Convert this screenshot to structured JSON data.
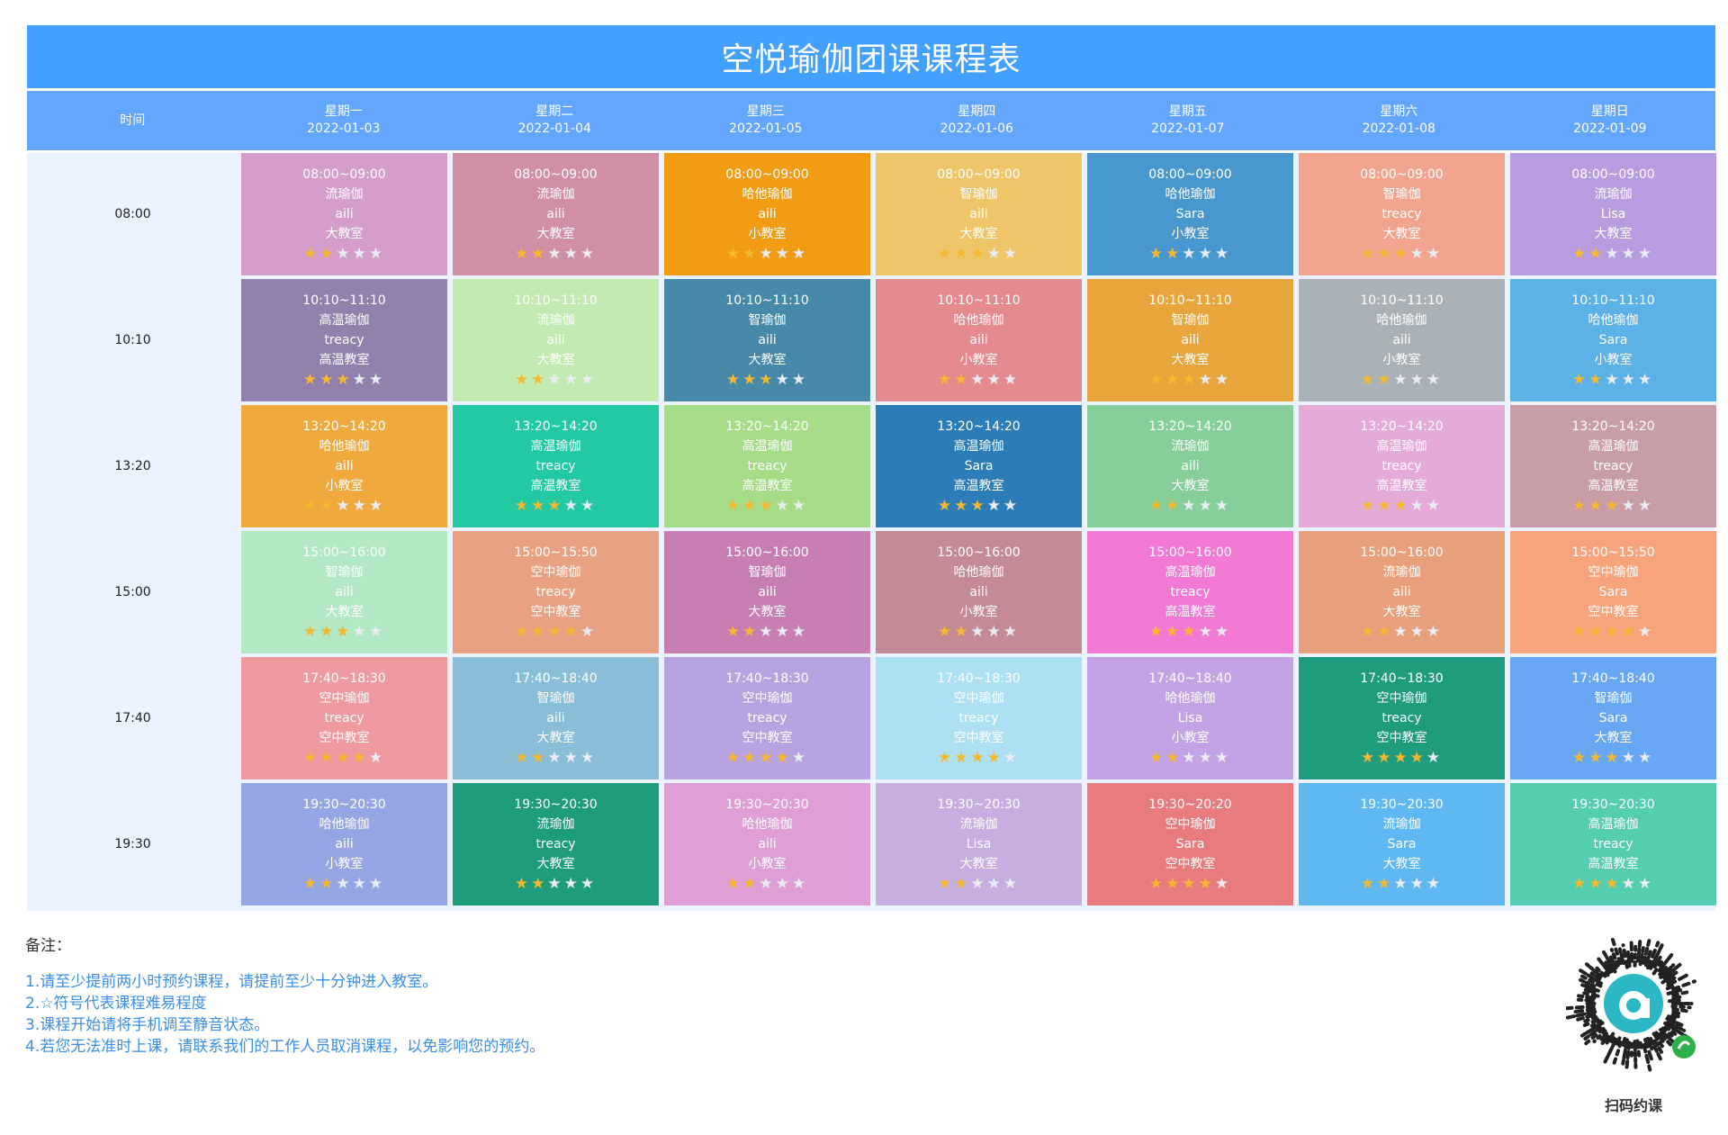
{
  "title": "空悦瑜伽团课课程表",
  "header": {
    "time_label": "时间",
    "days": [
      {
        "name": "星期一",
        "date": "2022-01-03"
      },
      {
        "name": "星期二",
        "date": "2022-01-04"
      },
      {
        "name": "星期三",
        "date": "2022-01-05"
      },
      {
        "name": "星期四",
        "date": "2022-01-06"
      },
      {
        "name": "星期五",
        "date": "2022-01-07"
      },
      {
        "name": "星期六",
        "date": "2022-01-08"
      },
      {
        "name": "星期日",
        "date": "2022-01-09"
      }
    ]
  },
  "times": [
    "08:00",
    "10:10",
    "13:20",
    "15:00",
    "17:40",
    "19:30"
  ],
  "slots": [
    [
      {
        "time": "08:00~09:00",
        "course": "流瑜伽",
        "teacher": "aili",
        "room": "大教室",
        "difficulty": 2,
        "color": "#d49dca"
      },
      {
        "time": "08:00~09:00",
        "course": "流瑜伽",
        "teacher": "aili",
        "room": "大教室",
        "difficulty": 2,
        "color": "#d18fa6"
      },
      {
        "time": "08:00~09:00",
        "course": "哈他瑜伽",
        "teacher": "aili",
        "room": "小教室",
        "difficulty": 2,
        "color": "#f29c13"
      },
      {
        "time": "08:00~09:00",
        "course": "智瑜伽",
        "teacher": "aili",
        "room": "大教室",
        "difficulty": 3,
        "color": "#eec568"
      },
      {
        "time": "08:00~09:00",
        "course": "哈他瑜伽",
        "teacher": "Sara",
        "room": "小教室",
        "difficulty": 2,
        "color": "#4898cf"
      },
      {
        "time": "08:00~09:00",
        "course": "智瑜伽",
        "teacher": "treacy",
        "room": "大教室",
        "difficulty": 3,
        "color": "#f2a48f"
      },
      {
        "time": "08:00~09:00",
        "course": "流瑜伽",
        "teacher": "Lisa",
        "room": "大教室",
        "difficulty": 2,
        "color": "#b89ce0"
      }
    ],
    [
      {
        "time": "10:10~11:10",
        "course": "高温瑜伽",
        "teacher": "treacy",
        "room": "高温教室",
        "difficulty": 3,
        "color": "#9381ad"
      },
      {
        "time": "10:10~11:10",
        "course": "流瑜伽",
        "teacher": "aili",
        "room": "大教室",
        "difficulty": 2,
        "color": "#c3eab0"
      },
      {
        "time": "10:10~11:10",
        "course": "智瑜伽",
        "teacher": "aili",
        "room": "大教室",
        "difficulty": 3,
        "color": "#4689a8"
      },
      {
        "time": "10:10~11:10",
        "course": "哈他瑜伽",
        "teacher": "aili",
        "room": "小教室",
        "difficulty": 2,
        "color": "#e58a8e"
      },
      {
        "time": "10:10~11:10",
        "course": "智瑜伽",
        "teacher": "aili",
        "room": "大教室",
        "difficulty": 3,
        "color": "#e8a53c"
      },
      {
        "time": "10:10~11:10",
        "course": "哈他瑜伽",
        "teacher": "aili",
        "room": "小教室",
        "difficulty": 2,
        "color": "#aab2b8"
      },
      {
        "time": "10:10~11:10",
        "course": "哈他瑜伽",
        "teacher": "Sara",
        "room": "小教室",
        "difficulty": 2,
        "color": "#5cb1e6"
      }
    ],
    [
      {
        "time": "13:20~14:20",
        "course": "哈他瑜伽",
        "teacher": "aili",
        "room": "小教室",
        "difficulty": 2,
        "color": "#f0a93d"
      },
      {
        "time": "13:20~14:20",
        "course": "高温瑜伽",
        "teacher": "treacy",
        "room": "高温教室",
        "difficulty": 3,
        "color": "#23c9a2"
      },
      {
        "time": "13:20~14:20",
        "course": "高温瑜伽",
        "teacher": "treacy",
        "room": "高温教室",
        "difficulty": 3,
        "color": "#a6dc88"
      },
      {
        "time": "13:20~14:20",
        "course": "高温瑜伽",
        "teacher": "Sara",
        "room": "高温教室",
        "difficulty": 3,
        "color": "#2b7cb7"
      },
      {
        "time": "13:20~14:20",
        "course": "流瑜伽",
        "teacher": "aili",
        "room": "大教室",
        "difficulty": 2,
        "color": "#86cf9b"
      },
      {
        "time": "13:20~14:20",
        "course": "高温瑜伽",
        "teacher": "treacy",
        "room": "高温教室",
        "difficulty": 3,
        "color": "#e4aad8"
      },
      {
        "time": "13:20~14:20",
        "course": "高温瑜伽",
        "teacher": "treacy",
        "room": "高温教室",
        "difficulty": 3,
        "color": "#c99da8"
      }
    ],
    [
      {
        "time": "15:00~16:00",
        "course": "智瑜伽",
        "teacher": "aili",
        "room": "大教室",
        "difficulty": 3,
        "color": "#b2e8c4"
      },
      {
        "time": "15:00~15:50",
        "course": "空中瑜伽",
        "teacher": "treacy",
        "room": "空中教室",
        "difficulty": 4,
        "color": "#e8a283"
      },
      {
        "time": "15:00~16:00",
        "course": "智瑜伽",
        "teacher": "aili",
        "room": "大教室",
        "difficulty": 2,
        "color": "#c77fb3"
      },
      {
        "time": "15:00~16:00",
        "course": "哈他瑜伽",
        "teacher": "aili",
        "room": "小教室",
        "difficulty": 2,
        "color": "#c48a96"
      },
      {
        "time": "15:00~16:00",
        "course": "高温瑜伽",
        "teacher": "treacy",
        "room": "高温教室",
        "difficulty": 3,
        "color": "#f279d4"
      },
      {
        "time": "15:00~16:00",
        "course": "流瑜伽",
        "teacher": "aili",
        "room": "大教室",
        "difficulty": 2,
        "color": "#e8a07c"
      },
      {
        "time": "15:00~15:50",
        "course": "空中瑜伽",
        "teacher": "Sara",
        "room": "空中教室",
        "difficulty": 4,
        "color": "#f7a47c"
      }
    ],
    [
      {
        "time": "17:40~18:30",
        "course": "空中瑜伽",
        "teacher": "treacy",
        "room": "空中教室",
        "difficulty": 4,
        "color": "#ef9aa0"
      },
      {
        "time": "17:40~18:40",
        "course": "智瑜伽",
        "teacher": "aili",
        "room": "大教室",
        "difficulty": 2,
        "color": "#8abed8"
      },
      {
        "time": "17:40~18:30",
        "course": "空中瑜伽",
        "teacher": "treacy",
        "room": "空中教室",
        "difficulty": 4,
        "color": "#b8a2e0"
      },
      {
        "time": "17:40~18:30",
        "course": "空中瑜伽",
        "teacher": "treacy",
        "room": "空中教室",
        "difficulty": 4,
        "color": "#ade0f2"
      },
      {
        "time": "17:40~18:40",
        "course": "哈他瑜伽",
        "teacher": "Lisa",
        "room": "小教室",
        "difficulty": 2,
        "color": "#c2a4e6"
      },
      {
        "time": "17:40~18:30",
        "course": "空中瑜伽",
        "teacher": "treacy",
        "room": "空中教室",
        "difficulty": 4,
        "color": "#1e9c7d"
      },
      {
        "time": "17:40~18:40",
        "course": "智瑜伽",
        "teacher": "Sara",
        "room": "大教室",
        "difficulty": 3,
        "color": "#67a7f3"
      }
    ],
    [
      {
        "time": "19:30~20:30",
        "course": "哈他瑜伽",
        "teacher": "aili",
        "room": "小教室",
        "difficulty": 2,
        "color": "#96a6e4"
      },
      {
        "time": "19:30~20:30",
        "course": "流瑜伽",
        "teacher": "treacy",
        "room": "大教室",
        "difficulty": 2,
        "color": "#1f9c7c"
      },
      {
        "time": "19:30~20:30",
        "course": "哈他瑜伽",
        "teacher": "aili",
        "room": "小教室",
        "difficulty": 2,
        "color": "#df9ed6"
      },
      {
        "time": "19:30~20:30",
        "course": "流瑜伽",
        "teacher": "Lisa",
        "room": "大教室",
        "difficulty": 2,
        "color": "#c6aee0"
      },
      {
        "time": "19:30~20:20",
        "course": "空中瑜伽",
        "teacher": "Sara",
        "room": "空中教室",
        "difficulty": 4,
        "color": "#e87b7d"
      },
      {
        "time": "19:30~20:30",
        "course": "流瑜伽",
        "teacher": "Sara",
        "room": "大教室",
        "difficulty": 2,
        "color": "#5fb8f2"
      },
      {
        "time": "19:30~20:30",
        "course": "高温瑜伽",
        "teacher": "treacy",
        "room": "高温教室",
        "difficulty": 3,
        "color": "#55cdb0"
      }
    ]
  ],
  "notes": {
    "title": "备注：",
    "lines": [
      "1.请至少提前两小时预约课程，请提前至少十分钟进入教室。",
      "2.☆符号代表课程难易程度",
      "3.课程开始请将手机调至静音状态。",
      "4.若您无法准时上课，请联系我们的工作人员取消课程，以免影响您的预约。"
    ]
  },
  "qr": {
    "label": "扫码约课",
    "icon": "mini-program-qr-icon"
  },
  "colors": {
    "banner": "#42a0ff",
    "header": "#62a6ff",
    "grid_bg": "#eaf3ff",
    "star_on": "#f5b82e",
    "star_off": "#e9ecf2",
    "notes": "#3a8ee6"
  }
}
